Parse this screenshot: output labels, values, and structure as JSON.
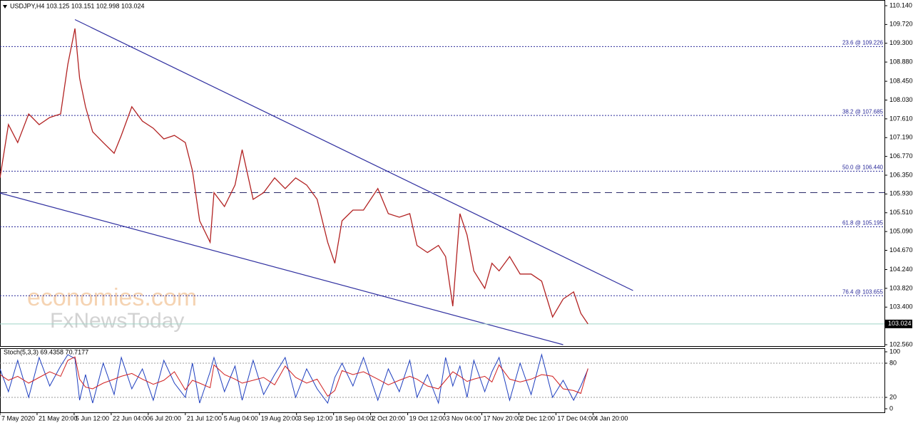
{
  "chart_data": [
    {
      "type": "line",
      "title": "USDJPY,H4  103.125 103.151 102.998 103.024",
      "color": "#b22222",
      "x": [
        0,
        20,
        42,
        68,
        93,
        118,
        144,
        161,
        178,
        189,
        203,
        220,
        245,
        271,
        288,
        313,
        338,
        364,
        389,
        414,
        440,
        457,
        474,
        499,
        508,
        533,
        558,
        575,
        601,
        626,
        652,
        677,
        702,
        728,
        753,
        778,
        795,
        812,
        838,
        863,
        897,
        922,
        948,
        973,
        990,
        1015,
        1041,
        1058,
        1075,
        1092,
        1109,
        1125,
        1151,
        1168,
        1185,
        1210,
        1235,
        1261,
        1286,
        1312,
        1337,
        1362,
        1379,
        1396
      ],
      "values": [
        106.29,
        107.48,
        107.08,
        107.72,
        107.48,
        107.64,
        107.72,
        108.83,
        109.63,
        108.52,
        107.88,
        107.32,
        107.08,
        106.84,
        107.24,
        107.88,
        107.56,
        107.4,
        107.16,
        107.24,
        107.08,
        106.45,
        105.33,
        104.85,
        105.96,
        105.65,
        106.13,
        106.92,
        105.81,
        105.96,
        106.29,
        106.05,
        106.29,
        106.13,
        105.81,
        104.85,
        104.38,
        105.33,
        105.57,
        105.57,
        106.05,
        105.49,
        105.41,
        105.49,
        104.78,
        104.62,
        104.78,
        104.53,
        103.42,
        105.49,
        105.01,
        104.21,
        103.82,
        104.38,
        104.21,
        104.53,
        104.14,
        104.14,
        103.98,
        103.18,
        103.58,
        103.74,
        103.26,
        103.024
      ],
      "xlim": [
        0,
        2100
      ],
      "ylim": [
        102.56,
        110.14
      ],
      "yticks": [
        {
          "value": 110.14,
          "label": "110.140"
        },
        {
          "value": 109.72,
          "label": "109.720"
        },
        {
          "value": 109.3,
          "label": "109.300"
        },
        {
          "value": 108.88,
          "label": "108.880"
        },
        {
          "value": 108.45,
          "label": "108.450"
        },
        {
          "value": 108.03,
          "label": "108.030"
        },
        {
          "value": 107.61,
          "label": "107.610"
        },
        {
          "value": 107.19,
          "label": "107.190"
        },
        {
          "value": 106.77,
          "label": "106.770"
        },
        {
          "value": 106.35,
          "label": "106.350"
        },
        {
          "value": 105.93,
          "label": "105.930"
        },
        {
          "value": 105.51,
          "label": "105.510"
        },
        {
          "value": 105.09,
          "label": "105.090"
        },
        {
          "value": 104.67,
          "label": "104.670"
        },
        {
          "value": 104.24,
          "label": "104.240"
        },
        {
          "value": 103.82,
          "label": "103.820"
        },
        {
          "value": 103.4,
          "label": "103.400"
        },
        {
          "value": 102.56,
          "label": "102.560"
        }
      ],
      "levels": [
        {
          "value": 109.226,
          "label": "23.6 @ 109.226"
        },
        {
          "value": 107.685,
          "label": "38.2 @ 107.685"
        },
        {
          "value": 106.44,
          "label": "50.0 @ 106.440"
        },
        {
          "value": 105.195,
          "label": "61.8 @ 105.195"
        },
        {
          "value": 103.655,
          "label": "76.4 @ 103.655"
        }
      ],
      "dashed_levels": [
        105.96
      ],
      "trendlines": [
        {
          "x": [
            178,
            1503
          ],
          "y": [
            109.83,
            103.77
          ]
        },
        {
          "x": [
            0,
            1337
          ],
          "y": [
            105.95,
            102.56
          ]
        }
      ],
      "last_price": {
        "value": 103.024,
        "label": "103.024"
      },
      "watermarks": [
        "economies.com",
        "FxNewsToday"
      ]
    },
    {
      "type": "line",
      "title": "Stoch(5,3,3) 69.4358 70.7177",
      "x": [
        0,
        20,
        42,
        68,
        93,
        118,
        144,
        161,
        178,
        189,
        203,
        220,
        245,
        271,
        288,
        313,
        338,
        364,
        389,
        414,
        440,
        457,
        474,
        499,
        508,
        533,
        558,
        575,
        601,
        626,
        652,
        677,
        702,
        728,
        753,
        778,
        795,
        812,
        838,
        863,
        897,
        922,
        948,
        973,
        990,
        1015,
        1041,
        1058,
        1075,
        1092,
        1109,
        1125,
        1151,
        1168,
        1185,
        1210,
        1235,
        1261,
        1286,
        1312,
        1337,
        1362,
        1379,
        1396
      ],
      "series": [
        {
          "color": "#1f3fbf",
          "values": [
            70,
            30,
            85,
            20,
            90,
            40,
            75,
            95,
            88,
            15,
            60,
            10,
            80,
            25,
            90,
            35,
            70,
            15,
            85,
            45,
            20,
            80,
            10,
            65,
            90,
            30,
            75,
            15,
            85,
            25,
            60,
            90,
            20,
            70,
            35,
            10,
            55,
            80,
            40,
            90,
            15,
            70,
            30,
            85,
            20,
            60,
            10,
            90,
            40,
            75,
            20,
            85,
            30,
            65,
            90,
            15,
            80,
            25,
            95,
            20,
            50,
            15,
            40,
            69.4358
          ]
        },
        {
          "color": "#d02020",
          "values": [
            60,
            50,
            57,
            45,
            55,
            65,
            57,
            85,
            91,
            52,
            38,
            35,
            45,
            52,
            57,
            62,
            52,
            43,
            50,
            65,
            33,
            50,
            45,
            37,
            77,
            60,
            52,
            45,
            50,
            55,
            42,
            75,
            55,
            45,
            52,
            22,
            32,
            67,
            60,
            65,
            52,
            42,
            50,
            57,
            52,
            40,
            35,
            50,
            65,
            57,
            48,
            52,
            57,
            47,
            77,
            52,
            47,
            52,
            60,
            57,
            35,
            32,
            27,
            70.7177
          ]
        }
      ],
      "xlim": [
        0,
        2100
      ],
      "ylim": [
        0,
        100
      ],
      "yticks": [
        100,
        80,
        20,
        0
      ],
      "grid_ticks": [
        80,
        20
      ],
      "xticks": [
        {
          "value": 0,
          "label": "7 May 2020"
        },
        {
          "value": 88,
          "label": "21 May 20:00"
        },
        {
          "value": 176,
          "label": "5 Jun 12:00"
        },
        {
          "value": 264,
          "label": "22 Jun 04:00"
        },
        {
          "value": 352,
          "label": "6 Jul 20:00"
        },
        {
          "value": 440,
          "label": "21 Jul 12:00"
        },
        {
          "value": 528,
          "label": "5 Aug 04:00"
        },
        {
          "value": 616,
          "label": "19 Aug 20:00"
        },
        {
          "value": 704,
          "label": "3 Sep 12:00"
        },
        {
          "value": 792,
          "label": "18 Sep 04:00"
        },
        {
          "value": 880,
          "label": "2 Oct 20:00"
        },
        {
          "value": 968,
          "label": "19 Oct 12:00"
        },
        {
          "value": 1056,
          "label": "3 Nov 04:00"
        },
        {
          "value": 1144,
          "label": "17 Nov 20:00"
        },
        {
          "value": 1232,
          "label": "2 Dec 12:00"
        },
        {
          "value": 1320,
          "label": "17 Dec 04:00"
        },
        {
          "value": 1408,
          "label": "4 Jan 20:00"
        }
      ]
    }
  ]
}
